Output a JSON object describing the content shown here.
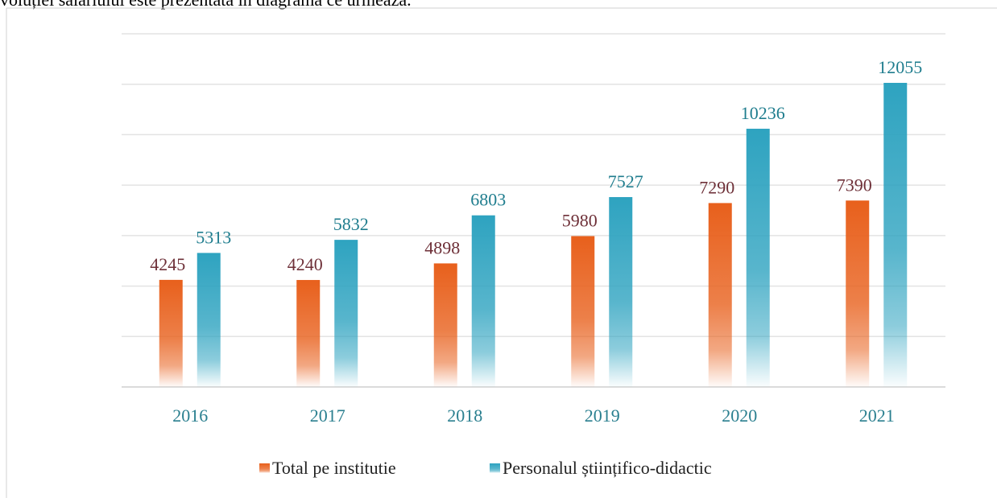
{
  "intro_text": "voluției salariului este prezentată în diagrama ce urmează.",
  "chart_data": {
    "type": "bar",
    "categories": [
      "2016",
      "2017",
      "2018",
      "2019",
      "2020",
      "2021"
    ],
    "series": [
      {
        "name": "Total pe institutie",
        "color": "#e8601c",
        "values": [
          4245,
          4240,
          4898,
          5980,
          7290,
          7390
        ]
      },
      {
        "name": "Personalul științifico-didactic",
        "color": "#2ea3c0",
        "values": [
          5313,
          5832,
          6803,
          7527,
          10236,
          12055
        ]
      }
    ],
    "ylim": [
      0,
      14000
    ],
    "yticks": [
      0,
      2000,
      4000,
      6000,
      8000,
      10000,
      12000,
      14000
    ],
    "grid": true,
    "legend": "bottom"
  }
}
